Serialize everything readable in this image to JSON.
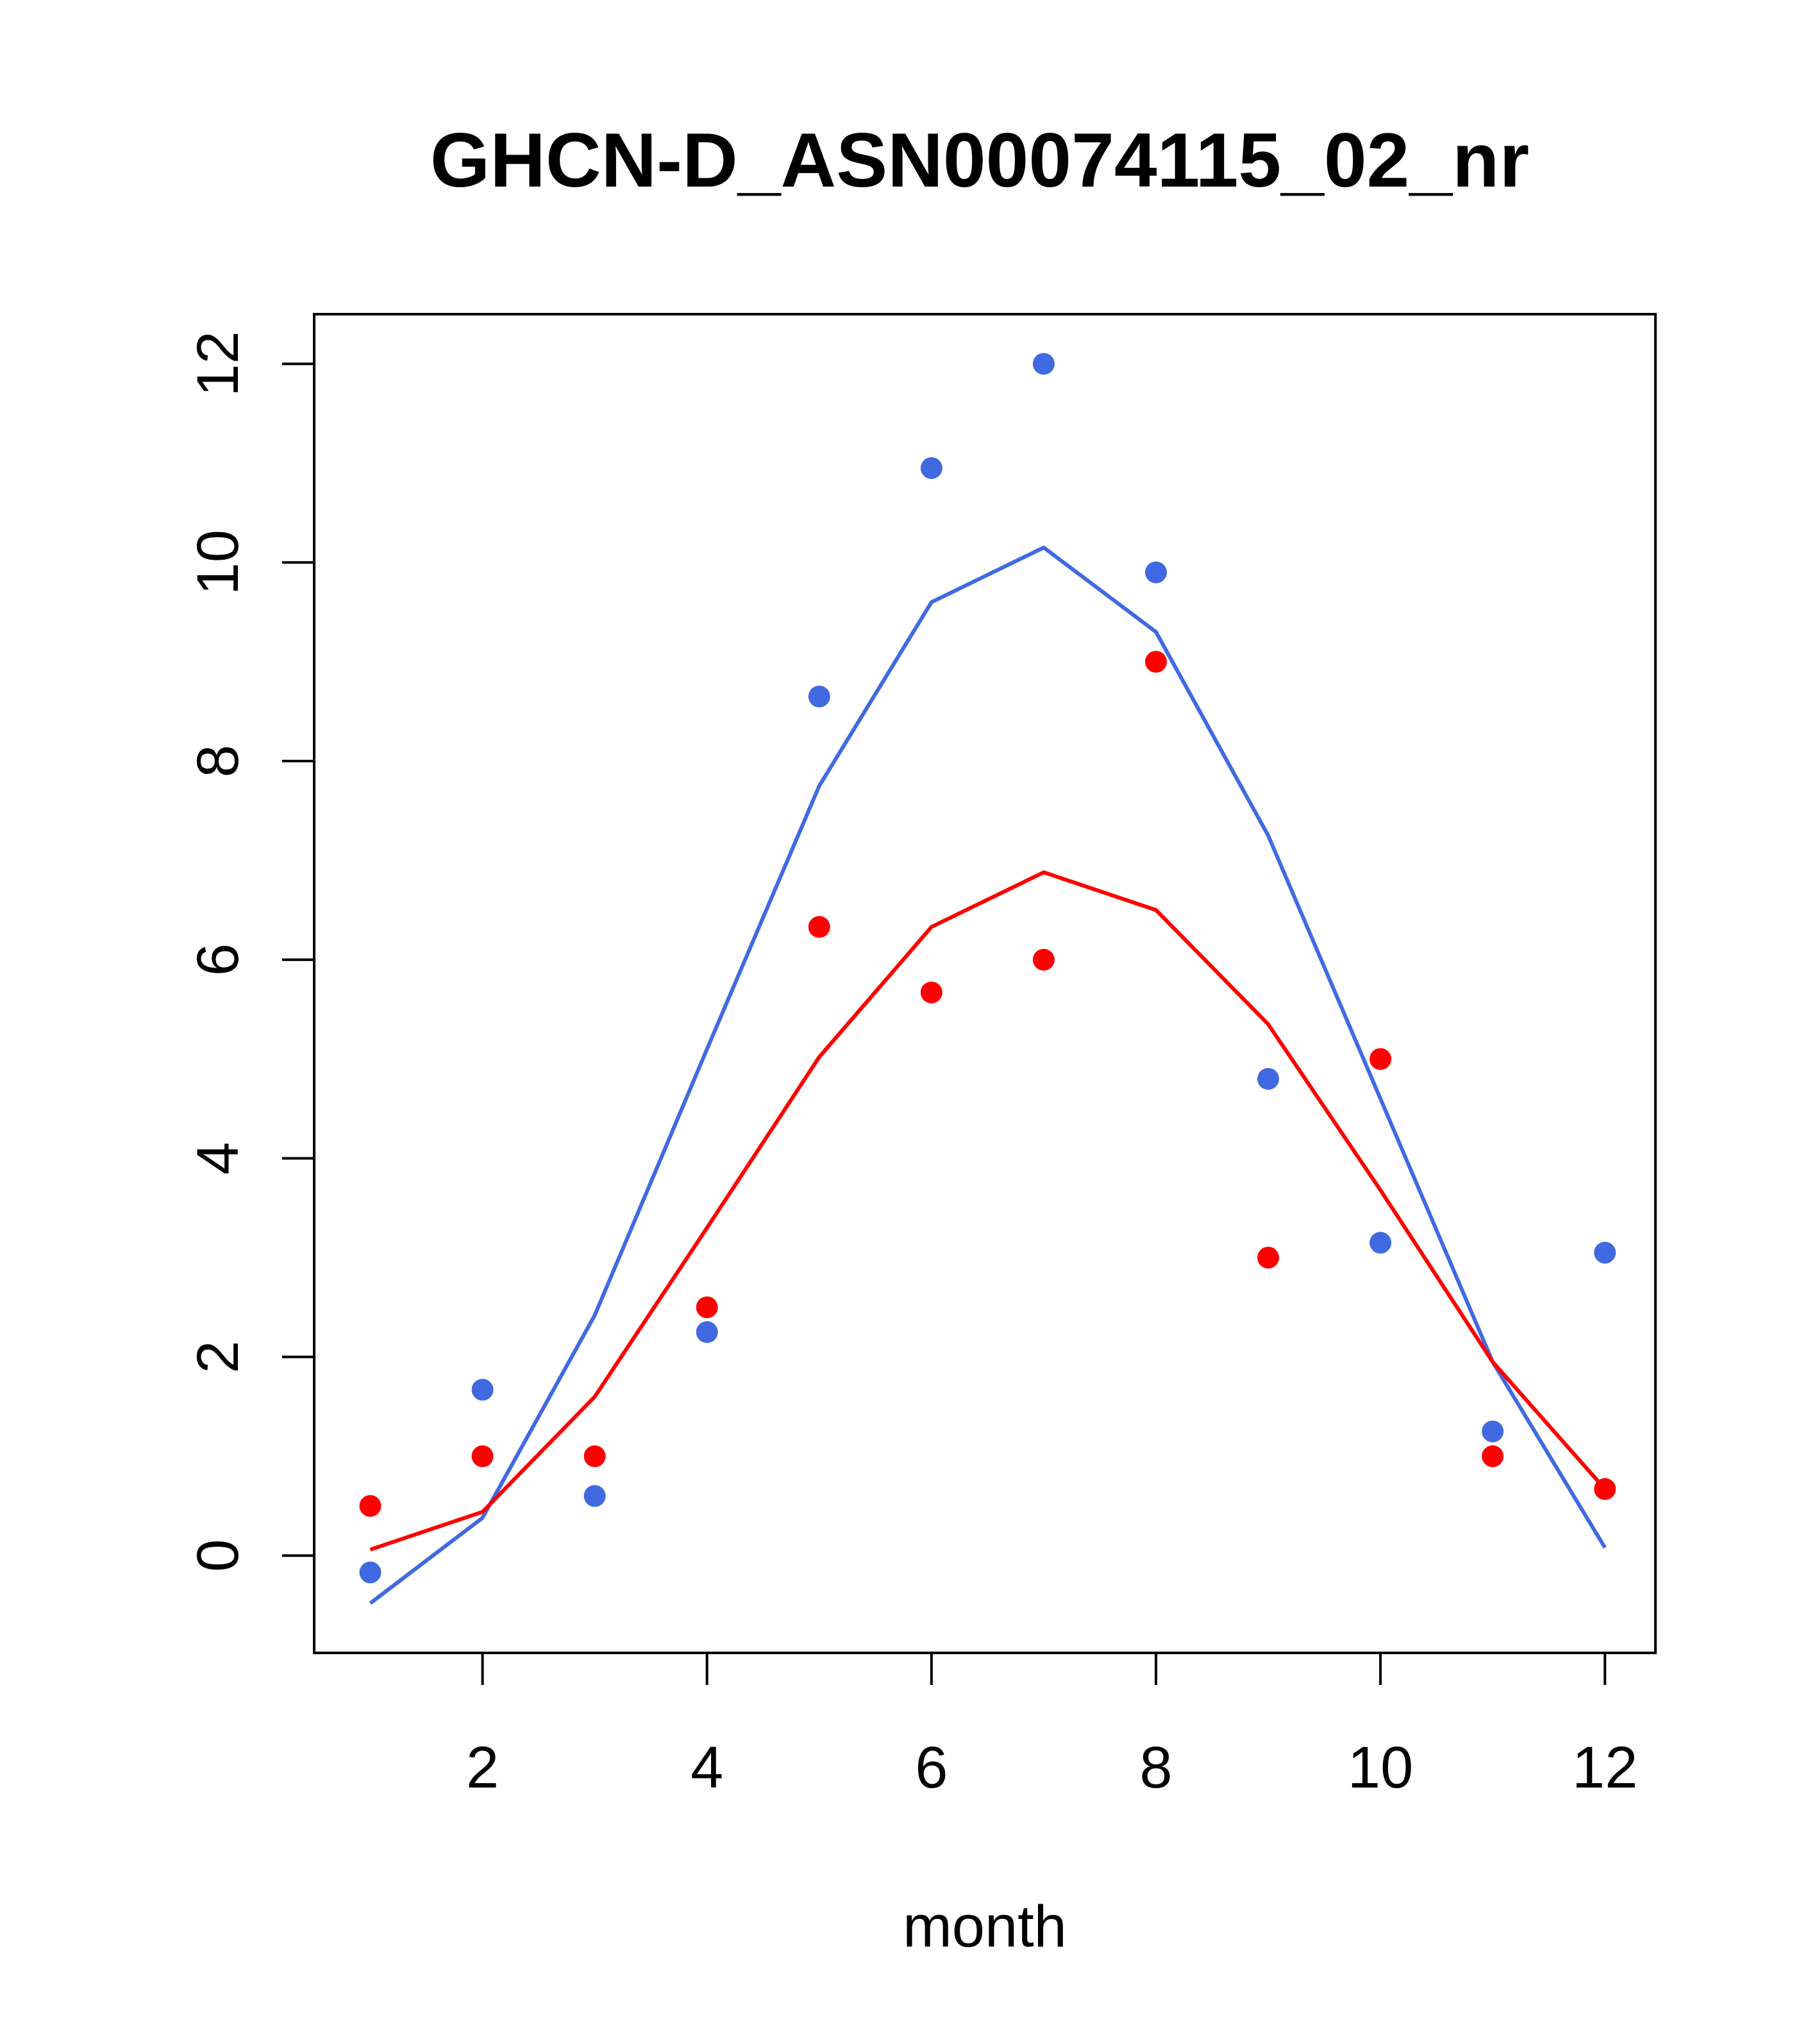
{
  "chart_data": {
    "type": "scatter",
    "title": "GHCN-D_ASN00074115_02_nr",
    "xlabel": "month",
    "ylabel": "",
    "xlim": [
      0.5,
      12.45
    ],
    "ylim": [
      -0.98,
      12.5
    ],
    "xticks": [
      2,
      4,
      6,
      8,
      10,
      12
    ],
    "yticks": [
      0,
      2,
      4,
      6,
      8,
      10,
      12
    ],
    "grid": false,
    "legend": "none",
    "series": [
      {
        "color": "#4169E1",
        "points": {
          "x": [
            1,
            2,
            3,
            4,
            5,
            6,
            7,
            8,
            9,
            10,
            11,
            12
          ],
          "y": [
            -0.17,
            1.67,
            0.6,
            2.25,
            8.65,
            10.95,
            12.0,
            9.9,
            4.8,
            3.15,
            1.25,
            3.05
          ]
        },
        "line": {
          "x": [
            1,
            2,
            3,
            4,
            5,
            6,
            7,
            8,
            9,
            10,
            11,
            12
          ],
          "y": [
            -0.48,
            0.38,
            2.42,
            5.1,
            7.75,
            9.6,
            10.15,
            9.3,
            7.25,
            4.6,
            1.95,
            0.08
          ]
        }
      },
      {
        "color": "#FF0000",
        "points": {
          "x": [
            1,
            2,
            3,
            4,
            5,
            6,
            7,
            8,
            9,
            10,
            11,
            12
          ],
          "y": [
            0.5,
            1.0,
            1.0,
            2.5,
            6.33,
            5.67,
            6.0,
            9.0,
            3.0,
            5.0,
            1.0,
            0.67
          ]
        },
        "line": {
          "x": [
            1,
            2,
            3,
            4,
            5,
            6,
            7,
            8,
            9,
            10,
            11,
            12
          ],
          "y": [
            0.06,
            0.44,
            1.6,
            3.3,
            5.02,
            6.33,
            6.88,
            6.5,
            5.35,
            3.68,
            1.95,
            0.67
          ]
        }
      }
    ]
  }
}
